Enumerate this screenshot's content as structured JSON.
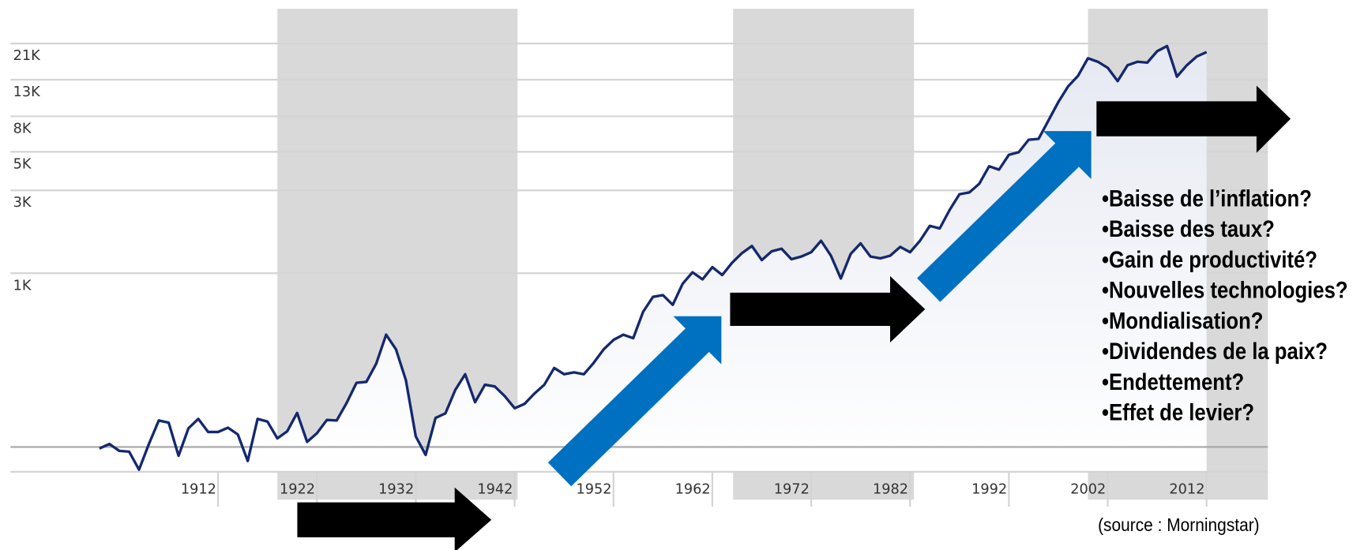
{
  "chart_data": {
    "type": "line",
    "log_scale": true,
    "grid": true,
    "color": "#14286e",
    "x": [
      1900,
      1901,
      1902,
      1903,
      1904,
      1905,
      1906,
      1907,
      1908,
      1909,
      1910,
      1911,
      1912,
      1913,
      1914,
      1915,
      1916,
      1917,
      1918,
      1919,
      1920,
      1921,
      1922,
      1923,
      1924,
      1925,
      1926,
      1927,
      1928,
      1929,
      1930,
      1931,
      1932,
      1933,
      1934,
      1935,
      1936,
      1937,
      1938,
      1939,
      1940,
      1941,
      1942,
      1943,
      1944,
      1945,
      1946,
      1947,
      1948,
      1949,
      1950,
      1951,
      1952,
      1953,
      1954,
      1955,
      1956,
      1957,
      1958,
      1959,
      1960,
      1961,
      1962,
      1963,
      1964,
      1965,
      1966,
      1967,
      1968,
      1969,
      1970,
      1971,
      1972,
      1973,
      1974,
      1975,
      1976,
      1977,
      1978,
      1979,
      1980,
      1981,
      1982,
      1983,
      1984,
      1985,
      1986,
      1987,
      1988,
      1989,
      1990,
      1991,
      1992,
      1993,
      1994,
      1995,
      1996,
      1997,
      1998,
      1999,
      2000,
      2001,
      2002,
      2003,
      2004,
      2005,
      2006,
      2007,
      2008,
      2009,
      2010,
      2011,
      2012
    ],
    "values": [
      98,
      104,
      95,
      94,
      74,
      104,
      142,
      138,
      89,
      128,
      145,
      122,
      122,
      129,
      118,
      83,
      145,
      140,
      112,
      123,
      157,
      107,
      120,
      143,
      142,
      179,
      234,
      237,
      302,
      443,
      364,
      242,
      115,
      90,
      147,
      156,
      213,
      262,
      181,
      228,
      223,
      196,
      167,
      177,
      203,
      228,
      285,
      262,
      269,
      262,
      305,
      364,
      413,
      443,
      423,
      600,
      731,
      748,
      658,
      870,
      1012,
      922,
      1084,
      977,
      1150,
      1306,
      1435,
      1191,
      1337,
      1384,
      1205,
      1247,
      1322,
      1538,
      1262,
      933,
      1292,
      1485,
      1247,
      1219,
      1262,
      1418,
      1322,
      1538,
      1874,
      1811,
      2312,
      2850,
      2917,
      3273,
      4130,
      3945,
      4806,
      4977,
      5861,
      5929,
      7568,
      9661,
      11910,
      13680,
      17270,
      16490,
      15200,
      12760,
      15740,
      16490,
      16300,
      18960,
      20320,
      13520,
      15740,
      17670,
      18750
    ],
    "xlim": [
      1891,
      2018.2
    ],
    "xticks": [
      1912,
      1922,
      1932,
      1942,
      1952,
      1962,
      1972,
      1982,
      1992,
      2002,
      2012
    ],
    "ylim": [
      72,
      33300
    ],
    "yticks": [
      {
        "value": 1000,
        "label": "1K"
      },
      {
        "value": 3000,
        "label": "3K"
      },
      {
        "value": 5000,
        "label": "5K"
      },
      {
        "value": 8000,
        "label": "8K"
      },
      {
        "value": 13000,
        "label": "13K"
      },
      {
        "value": 21000,
        "label": "21K"
      }
    ],
    "baseline": 100,
    "shaded": [
      [
        1918,
        1942.3
      ],
      [
        1964.1,
        1982.4
      ],
      [
        2000,
        2018.2
      ]
    ]
  },
  "bullets": [
    "•Baisse de l’inflation?",
    "•Baisse des taux?",
    "•Gain de productivité?",
    "•Nouvelles technologies?",
    "•Mondialisation?",
    "•Dividendes de la paix?",
    "•Endettement?",
    "•Effet de levier?"
  ],
  "source": "(source : Morningstar)"
}
